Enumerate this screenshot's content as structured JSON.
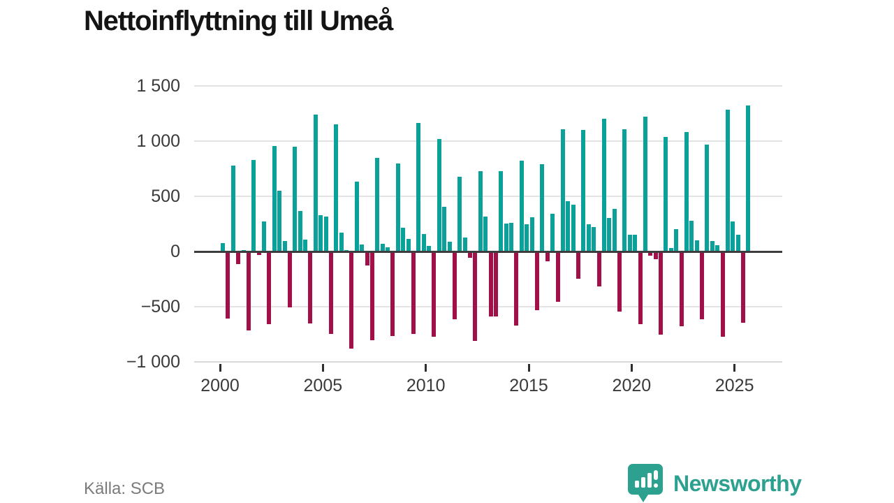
{
  "title": "Nettoinflyttning till Umeå",
  "source": "Källa: SCB",
  "branding": {
    "name": "Newsworthy",
    "icon": "speech-bubble-bar-chart-icon"
  },
  "colors": {
    "positive_bar": "#0aa19b",
    "negative_bar": "#a11048",
    "gridline": "#e3e3e3",
    "zero_line": "#3d3d3d",
    "axis_line": "#d9d9d9",
    "tick": "#2e2e2e",
    "tick_label": "#3a3a3a",
    "title_text": "#141414",
    "source_text": "#7b7b7b",
    "brand_teal": "#2da18f"
  },
  "chart_data": {
    "type": "bar",
    "title": "Nettoinflyttning till Umeå",
    "xlabel": "",
    "ylabel": "",
    "ylim": [
      -1000,
      1645
    ],
    "grid": "horizontal",
    "legend": "none",
    "y_ticks": [
      {
        "value": 1500,
        "label": "1 500"
      },
      {
        "value": 1000,
        "label": "1 000"
      },
      {
        "value": 500,
        "label": "500"
      },
      {
        "value": 0,
        "label": "0"
      },
      {
        "value": -500,
        "label": "−500"
      },
      {
        "value": -1000,
        "label": "−1 000"
      }
    ],
    "x_ticks": [
      {
        "year": 2000,
        "label": "2000"
      },
      {
        "year": 2005,
        "label": "2005"
      },
      {
        "year": 2010,
        "label": "2010"
      },
      {
        "year": 2015,
        "label": "2015"
      },
      {
        "year": 2020,
        "label": "2020"
      },
      {
        "year": 2025,
        "label": "2025"
      }
    ],
    "frequency": "quarterly",
    "start_period": "2000Q1",
    "end_period": "2025Q3",
    "values": [
      75,
      -600,
      780,
      -110,
      10,
      -710,
      830,
      -25,
      275,
      -650,
      955,
      550,
      95,
      -500,
      950,
      370,
      105,
      -645,
      1240,
      330,
      315,
      -740,
      1150,
      170,
      10,
      -875,
      635,
      65,
      -120,
      -800,
      850,
      70,
      35,
      -760,
      800,
      215,
      115,
      -740,
      1165,
      160,
      50,
      -765,
      1020,
      405,
      90,
      -610,
      680,
      125,
      -48,
      -805,
      730,
      315,
      -580,
      -580,
      730,
      255,
      260,
      -665,
      825,
      245,
      310,
      -525,
      790,
      -80,
      340,
      -450,
      1105,
      455,
      425,
      -240,
      1100,
      250,
      220,
      -310,
      1205,
      305,
      385,
      -540,
      1110,
      155,
      150,
      -650,
      1220,
      -30,
      -65,
      -745,
      1035,
      30,
      205,
      -670,
      1080,
      280,
      100,
      -610,
      970,
      95,
      55,
      -765,
      1285,
      270,
      150,
      -640,
      1320
    ]
  }
}
